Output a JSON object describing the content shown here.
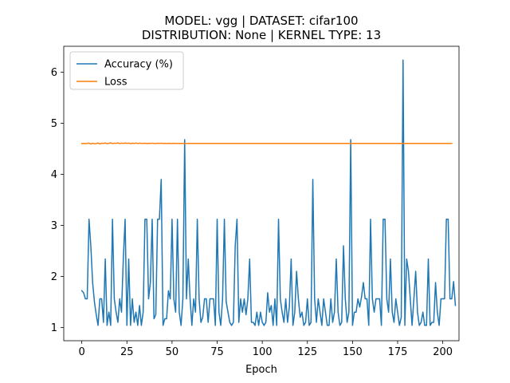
{
  "chart_data": {
    "type": "line",
    "title_line1": "MODEL: vgg | DATASET: cifar100",
    "title_line2": "DISTRIBUTION: None | KERNEL TYPE: 13",
    "xlabel": "Epoch",
    "ylabel": "",
    "xlim": [
      -10,
      209
    ],
    "ylim": [
      0.74,
      6.51
    ],
    "xticks": [
      0,
      25,
      50,
      75,
      100,
      125,
      150,
      175,
      200
    ],
    "yticks": [
      1,
      2,
      3,
      4,
      5,
      6
    ],
    "grid": false,
    "legend_position": "top-left",
    "series": [
      {
        "name": "Accuracy (%)",
        "color": "#1f77b4",
        "x_start": 0,
        "values": [
          1.72,
          1.68,
          1.56,
          1.56,
          3.12,
          2.6,
          1.88,
          1.5,
          1.25,
          1.04,
          1.56,
          1.56,
          1.1,
          2.34,
          1.04,
          1.3,
          1.04,
          3.12,
          1.56,
          1.3,
          1.1,
          1.56,
          1.3,
          2.34,
          3.12,
          1.04,
          2.34,
          1.04,
          1.56,
          1.1,
          1.3,
          1.04,
          1.43,
          1.04,
          1.3,
          3.12,
          3.12,
          1.56,
          1.88,
          3.12,
          1.17,
          1.25,
          3.12,
          3.12,
          3.9,
          1.04,
          1.17,
          1.17,
          1.72,
          1.56,
          3.12,
          1.56,
          1.3,
          3.12,
          1.3,
          1.04,
          1.56,
          4.68,
          1.56,
          2.34,
          1.56,
          1.04,
          1.56,
          1.3,
          3.12,
          1.56,
          1.1,
          1.2,
          1.56,
          1.56,
          1.1,
          1.56,
          1.56,
          1.56,
          1.04,
          3.12,
          1.3,
          1.04,
          1.56,
          3.12,
          1.5,
          1.3,
          1.1,
          1.04,
          1.1,
          2.6,
          3.12,
          1.1,
          1.56,
          1.3,
          1.56,
          1.25,
          1.56,
          2.34,
          1.1,
          1.1,
          1.04,
          1.3,
          1.04,
          1.3,
          1.1,
          1.04,
          1.1,
          1.68,
          1.3,
          1.43,
          1.04,
          1.56,
          1.04,
          3.12,
          1.56,
          1.3,
          1.1,
          1.56,
          1.1,
          1.4,
          2.34,
          1.04,
          1.3,
          2.1,
          1.56,
          1.2,
          1.3,
          1.04,
          1.1,
          1.56,
          1.04,
          1.1,
          3.9,
          1.56,
          1.1,
          1.56,
          1.3,
          1.04,
          1.56,
          1.3,
          1.04,
          1.04,
          1.56,
          1.1,
          1.3,
          2.34,
          1.3,
          1.04,
          1.1,
          2.6,
          1.56,
          1.1,
          1.3,
          4.68,
          1.04,
          1.3,
          1.3,
          1.56,
          1.4,
          1.6,
          1.88,
          1.56,
          1.56,
          1.04,
          3.12,
          1.56,
          1.3,
          1.56,
          1.56,
          1.56,
          1.04,
          3.12,
          3.12,
          1.56,
          1.3,
          2.34,
          1.3,
          1.1,
          1.56,
          1.3,
          1.04,
          1.2,
          6.24,
          1.04,
          2.34,
          2.1,
          1.56,
          1.04,
          1.56,
          2.1,
          1.3,
          1.04,
          1.1,
          1.3,
          1.04,
          1.04,
          2.34,
          1.04,
          1.1,
          1.1,
          1.88,
          1.3,
          1.04,
          1.56,
          1.56,
          1.56,
          3.12,
          3.12,
          1.56,
          1.56,
          1.9,
          1.43
        ]
      },
      {
        "name": "Loss",
        "color": "#ff7f0e",
        "x_start": 0,
        "values": [
          4.605,
          4.607,
          4.603,
          4.606,
          4.612,
          4.595,
          4.609,
          4.6,
          4.604,
          4.615,
          4.598,
          4.61,
          4.606,
          4.614,
          4.601,
          4.608,
          4.618,
          4.604,
          4.611,
          4.609,
          4.616,
          4.603,
          4.612,
          4.607,
          4.614,
          4.608,
          4.612,
          4.604,
          4.61,
          4.607,
          4.613,
          4.605,
          4.611,
          4.609,
          4.606,
          4.61,
          4.604,
          4.608,
          4.606,
          4.611,
          4.607,
          4.605,
          4.61,
          4.607,
          4.611,
          4.606,
          4.608,
          4.605,
          4.609,
          4.606,
          4.607,
          4.608,
          4.606,
          4.607,
          4.607,
          4.606,
          4.607,
          4.606,
          4.607,
          4.606,
          4.607,
          4.606,
          4.607,
          4.606,
          4.607,
          4.606,
          4.607,
          4.606,
          4.607,
          4.606,
          4.607,
          4.606,
          4.607,
          4.606,
          4.607,
          4.606,
          4.607,
          4.606,
          4.607,
          4.606,
          4.607,
          4.606,
          4.607,
          4.606,
          4.607,
          4.606,
          4.607,
          4.606,
          4.607,
          4.606,
          4.607,
          4.606,
          4.607,
          4.606,
          4.607,
          4.606,
          4.607,
          4.606,
          4.607,
          4.606,
          4.607,
          4.606,
          4.607,
          4.606,
          4.607,
          4.606,
          4.607,
          4.606,
          4.607,
          4.606,
          4.607,
          4.606,
          4.607,
          4.606,
          4.607,
          4.606,
          4.607,
          4.606,
          4.607,
          4.606,
          4.607,
          4.606,
          4.607,
          4.606,
          4.607,
          4.606,
          4.607,
          4.606,
          4.607,
          4.606,
          4.607,
          4.606,
          4.607,
          4.606,
          4.607,
          4.606,
          4.607,
          4.606,
          4.607,
          4.606,
          4.607,
          4.606,
          4.607,
          4.606,
          4.607,
          4.606,
          4.607,
          4.606,
          4.607,
          4.606,
          4.607,
          4.606,
          4.607,
          4.606,
          4.607,
          4.606,
          4.607,
          4.606,
          4.607,
          4.606,
          4.607,
          4.606,
          4.607,
          4.606,
          4.607,
          4.606,
          4.607,
          4.606,
          4.607,
          4.606,
          4.607,
          4.606,
          4.607,
          4.606,
          4.607,
          4.606,
          4.607,
          4.606,
          4.607,
          4.606,
          4.607,
          4.606,
          4.607,
          4.606,
          4.607,
          4.606,
          4.607,
          4.606,
          4.607,
          4.606,
          4.607,
          4.606,
          4.607,
          4.606,
          4.607,
          4.606,
          4.607,
          4.606,
          4.607,
          4.606,
          4.607,
          4.606,
          4.607,
          4.606,
          4.607,
          4.606
        ]
      }
    ]
  }
}
